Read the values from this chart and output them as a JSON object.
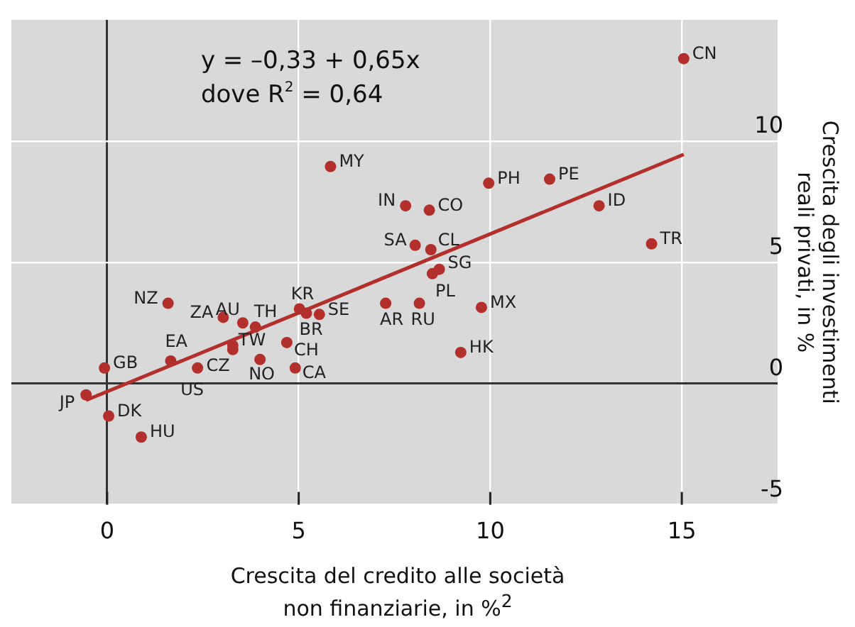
{
  "chart_data": {
    "type": "scatter",
    "xlabel": "Crescita del credito alle società\nnon finanziarie, in %$^{2}$",
    "ylabel": "Crescita degli investimenti\nreali privati, in %",
    "annotations": [
      "y = –0,33 + 0,65x",
      "dove R$^{2}$ = 0,64"
    ],
    "xlim": [
      -2.5,
      17.5
    ],
    "xticks": [
      0,
      5,
      10,
      15
    ],
    "ylim": [
      -5,
      15
    ],
    "yticks": [
      -5,
      0,
      5,
      10
    ],
    "grid": true,
    "legend": false,
    "marker": "circle",
    "series": [
      {
        "name": "CN",
        "color": "#b22f2c",
        "x": [
          15.05
        ],
        "values": [
          13.4
        ]
      },
      {
        "name": "MY",
        "color": "#b22f2c",
        "x": [
          5.83
        ],
        "values": [
          8.95
        ]
      },
      {
        "name": "IN",
        "color": "#b22f2c",
        "x": [
          7.79
        ],
        "values": [
          7.33
        ]
      },
      {
        "name": "CO",
        "color": "#b22f2c",
        "x": [
          8.41
        ],
        "values": [
          7.15
        ]
      },
      {
        "name": "PH",
        "color": "#b22f2c",
        "x": [
          9.96
        ],
        "values": [
          8.26
        ]
      },
      {
        "name": "PE",
        "color": "#b22f2c",
        "x": [
          11.55
        ],
        "values": [
          8.43
        ]
      },
      {
        "name": "ID",
        "color": "#b22f2c",
        "x": [
          12.84
        ],
        "values": [
          7.33
        ]
      },
      {
        "name": "SA",
        "color": "#b22f2c",
        "x": [
          8.04
        ],
        "values": [
          5.7
        ]
      },
      {
        "name": "CL",
        "color": "#b22f2c",
        "x": [
          8.45
        ],
        "values": [
          5.52
        ]
      },
      {
        "name": "TR",
        "color": "#b22f2c",
        "x": [
          14.21
        ],
        "values": [
          5.76
        ]
      },
      {
        "name": "SG",
        "color": "#b22f2c",
        "x": [
          8.67
        ],
        "values": [
          4.71
        ]
      },
      {
        "name": "PL",
        "color": "#b22f2c",
        "x": [
          8.49
        ],
        "values": [
          4.53
        ]
      },
      {
        "name": "NZ",
        "color": "#b22f2c",
        "x": [
          1.59
        ],
        "values": [
          3.31
        ]
      },
      {
        "name": "ZA",
        "color": "#b22f2c",
        "x": [
          3.03
        ],
        "values": [
          2.73
        ]
      },
      {
        "name": "AU",
        "color": "#b22f2c",
        "x": [
          3.54
        ],
        "values": [
          2.5
        ]
      },
      {
        "name": "TH",
        "color": "#b22f2c",
        "x": [
          3.87
        ],
        "values": [
          2.33
        ]
      },
      {
        "name": "KR",
        "color": "#b22f2c",
        "x": [
          5.02
        ],
        "values": [
          3.08
        ]
      },
      {
        "name": "BR",
        "color": "#b22f2c",
        "x": [
          5.2
        ],
        "values": [
          2.9
        ]
      },
      {
        "name": "SE",
        "color": "#b22f2c",
        "x": [
          5.54
        ],
        "values": [
          2.85
        ]
      },
      {
        "name": "AR",
        "color": "#b22f2c",
        "x": [
          7.27
        ],
        "values": [
          3.31
        ]
      },
      {
        "name": "RU",
        "color": "#b22f2c",
        "x": [
          8.15
        ],
        "values": [
          3.31
        ]
      },
      {
        "name": "MX",
        "color": "#b22f2c",
        "x": [
          9.77
        ],
        "values": [
          3.14
        ]
      },
      {
        "name": "EA",
        "color": "#b22f2c",
        "x": [
          1.66
        ],
        "values": [
          0.93
        ]
      },
      {
        "name": "TW",
        "color": "#b22f2c",
        "x": [
          3.28
        ],
        "values": [
          1.57
        ]
      },
      {
        "name": "CZ",
        "color": "#b22f2c",
        "x": [
          3.28
        ],
        "values": [
          1.4
        ]
      },
      {
        "name": "CH",
        "color": "#b22f2c",
        "x": [
          4.69
        ],
        "values": [
          1.69
        ]
      },
      {
        "name": "NO",
        "color": "#b22f2c",
        "x": [
          3.99
        ],
        "values": [
          0.99
        ]
      },
      {
        "name": "CA",
        "color": "#b22f2c",
        "x": [
          4.91
        ],
        "values": [
          0.64
        ]
      },
      {
        "name": "HK",
        "color": "#b22f2c",
        "x": [
          9.23
        ],
        "values": [
          1.28
        ]
      },
      {
        "name": "GB",
        "color": "#b22f2c",
        "x": [
          -0.07
        ],
        "values": [
          0.64
        ]
      },
      {
        "name": "US",
        "color": "#b22f2c",
        "x": [
          2.36
        ],
        "values": [
          0.64
        ]
      },
      {
        "name": "JP",
        "color": "#b22f2c",
        "x": [
          -0.55
        ],
        "values": [
          -0.47
        ]
      },
      {
        "name": "DK",
        "color": "#b22f2c",
        "x": [
          0.04
        ],
        "values": [
          -1.34
        ]
      },
      {
        "name": "HU",
        "color": "#b22f2c",
        "x": [
          0.89
        ],
        "values": [
          -2.21
        ]
      },
      {
        "type": "line",
        "color": "#b22f2c",
        "x": [
          -0.55,
          15.05
        ],
        "values": [
          -0.69,
          9.45
        ],
        "marker": "none"
      }
    ]
  }
}
